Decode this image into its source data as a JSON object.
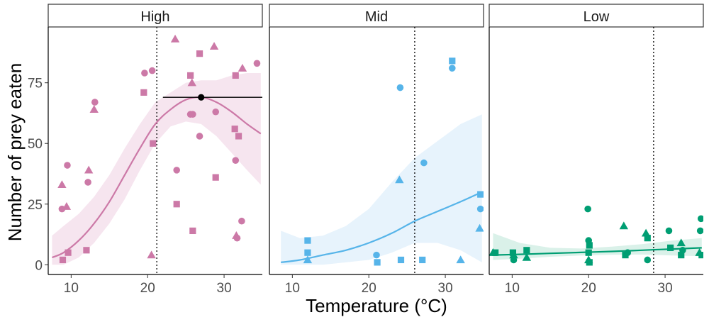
{
  "chart_data": {
    "type": "scatter",
    "y_label": "Number of prey eaten",
    "x_label": "Temperature (°C)",
    "xlim": [
      7,
      35
    ],
    "ylim": [
      -4,
      98
    ],
    "x_ticks": [
      10,
      20,
      30
    ],
    "y_ticks": [
      0,
      25,
      50,
      75
    ],
    "shape_legend": [
      "triangle",
      "circle",
      "square"
    ],
    "panels": [
      {
        "title": "High",
        "color": "#CC79A7",
        "fill": "#F4E1EC",
        "vline_x": 21.2,
        "optimum": {
          "x": 27,
          "y": 69,
          "xmin": 22,
          "xmax": 35
        },
        "fit_x": [
          7.5,
          9,
          11,
          13,
          15,
          17,
          19,
          21,
          23,
          25,
          27,
          29,
          31,
          33,
          34.8
        ],
        "fit_y": [
          3,
          5,
          10,
          17,
          26,
          37,
          48,
          58,
          64,
          68,
          69,
          67,
          63,
          58,
          54
        ],
        "ci_low": [
          0,
          0,
          3,
          9,
          17,
          27,
          39,
          50,
          57,
          59,
          58,
          53,
          46,
          39,
          33
        ],
        "ci_high": [
          12,
          16,
          21,
          28,
          37,
          48,
          58,
          67,
          71,
          75,
          76,
          76,
          78,
          79,
          79
        ],
        "points": [
          {
            "x": 8.8,
            "y": 33,
            "s": "tri"
          },
          {
            "x": 9.4,
            "y": 24,
            "s": "tri"
          },
          {
            "x": 8.8,
            "y": 23,
            "s": "circle"
          },
          {
            "x": 9.5,
            "y": 41,
            "s": "circle"
          },
          {
            "x": 8.9,
            "y": 2,
            "s": "square"
          },
          {
            "x": 9.6,
            "y": 5,
            "s": "square"
          },
          {
            "x": 12.3,
            "y": 39,
            "s": "tri"
          },
          {
            "x": 12.2,
            "y": 34,
            "s": "circle"
          },
          {
            "x": 12.0,
            "y": 6,
            "s": "square"
          },
          {
            "x": 13.1,
            "y": 67,
            "s": "circle"
          },
          {
            "x": 13.0,
            "y": 64,
            "s": "tri"
          },
          {
            "x": 19.6,
            "y": 79,
            "s": "circle"
          },
          {
            "x": 20.6,
            "y": 80,
            "s": "circle"
          },
          {
            "x": 19.5,
            "y": 71,
            "s": "square"
          },
          {
            "x": 20.7,
            "y": 50,
            "s": "square"
          },
          {
            "x": 20.5,
            "y": 4,
            "s": "tri"
          },
          {
            "x": 23.6,
            "y": 93,
            "s": "tri"
          },
          {
            "x": 23.8,
            "y": 39,
            "s": "circle"
          },
          {
            "x": 23.8,
            "y": 25,
            "s": "square"
          },
          {
            "x": 25.6,
            "y": 78,
            "s": "square"
          },
          {
            "x": 25.8,
            "y": 75,
            "s": "tri"
          },
          {
            "x": 25.6,
            "y": 62,
            "s": "circle"
          },
          {
            "x": 25.9,
            "y": 62,
            "s": "circle"
          },
          {
            "x": 25.9,
            "y": 14,
            "s": "square"
          },
          {
            "x": 26.8,
            "y": 53,
            "s": "circle"
          },
          {
            "x": 26.8,
            "y": 87,
            "s": "square"
          },
          {
            "x": 28.7,
            "y": 90,
            "s": "tri"
          },
          {
            "x": 28.9,
            "y": 63,
            "s": "circle"
          },
          {
            "x": 28.9,
            "y": 36,
            "s": "square"
          },
          {
            "x": 31.5,
            "y": 78,
            "s": "square"
          },
          {
            "x": 32.4,
            "y": 81,
            "s": "tri"
          },
          {
            "x": 31.4,
            "y": 56,
            "s": "square"
          },
          {
            "x": 31.9,
            "y": 53,
            "s": "square"
          },
          {
            "x": 31.5,
            "y": 43,
            "s": "circle"
          },
          {
            "x": 31.6,
            "y": 12,
            "s": "tri"
          },
          {
            "x": 31.7,
            "y": 11,
            "s": "circle"
          },
          {
            "x": 32.3,
            "y": 18,
            "s": "circle"
          },
          {
            "x": 34.3,
            "y": 83,
            "s": "circle"
          }
        ]
      },
      {
        "title": "Mid",
        "color": "#56B4E9",
        "fill": "#E3F1FB",
        "vline_x": 26,
        "optimum": null,
        "fit_x": [
          8.5,
          11,
          14,
          17,
          20,
          23,
          26,
          29,
          32,
          34.8
        ],
        "fit_y": [
          1,
          2,
          4,
          6,
          9,
          13,
          18,
          22,
          26,
          30
        ],
        "ci_low": [
          0,
          0,
          0,
          1,
          2,
          5,
          9,
          9,
          6,
          1
        ],
        "ci_high": [
          14,
          11,
          12,
          16,
          23,
          34,
          44,
          51,
          58,
          62
        ],
        "points": [
          {
            "x": 12.0,
            "y": 10,
            "s": "square"
          },
          {
            "x": 12.0,
            "y": 5,
            "s": "square"
          },
          {
            "x": 12.0,
            "y": 2,
            "s": "tri"
          },
          {
            "x": 21.0,
            "y": 4,
            "s": "circle"
          },
          {
            "x": 21.1,
            "y": 1,
            "s": "square"
          },
          {
            "x": 24.1,
            "y": 73,
            "s": "circle"
          },
          {
            "x": 24.0,
            "y": 35,
            "s": "tri"
          },
          {
            "x": 24.2,
            "y": 2,
            "s": "square"
          },
          {
            "x": 27.2,
            "y": 42,
            "s": "circle"
          },
          {
            "x": 27.0,
            "y": 2,
            "s": "square"
          },
          {
            "x": 30.9,
            "y": 84,
            "s": "square"
          },
          {
            "x": 30.9,
            "y": 81,
            "s": "circle"
          },
          {
            "x": 32.0,
            "y": 2,
            "s": "tri"
          },
          {
            "x": 34.6,
            "y": 29,
            "s": "square"
          },
          {
            "x": 34.6,
            "y": 23,
            "s": "circle"
          },
          {
            "x": 34.5,
            "y": 15,
            "s": "tri"
          }
        ]
      },
      {
        "title": "Low",
        "color": "#009E73",
        "fill": "#D3EEE5",
        "vline_x": 28.5,
        "optimum": null,
        "fit_x": [
          7.5,
          11,
          15,
          19,
          23,
          27,
          31,
          34.8
        ],
        "fit_y": [
          4,
          4.3,
          4.7,
          5.1,
          5.5,
          6,
          6.5,
          7
        ],
        "ci_low": [
          2,
          2.5,
          3.3,
          3.8,
          4.1,
          4.2,
          3.8,
          3.5
        ],
        "ci_high": [
          13,
          9,
          7,
          6.7,
          7.5,
          8.5,
          10,
          11
        ],
        "points": [
          {
            "x": 7.5,
            "y": 5,
            "s": "tri"
          },
          {
            "x": 7.8,
            "y": 5,
            "s": "square"
          },
          {
            "x": 10.1,
            "y": 5,
            "s": "square"
          },
          {
            "x": 10.2,
            "y": 4,
            "s": "tri"
          },
          {
            "x": 10.2,
            "y": 2,
            "s": "circle"
          },
          {
            "x": 11.9,
            "y": 6,
            "s": "square"
          },
          {
            "x": 11.9,
            "y": 3,
            "s": "tri"
          },
          {
            "x": 19.9,
            "y": 23,
            "s": "circle"
          },
          {
            "x": 20.0,
            "y": 10,
            "s": "circle"
          },
          {
            "x": 20.1,
            "y": 8,
            "s": "square"
          },
          {
            "x": 20.0,
            "y": 5,
            "s": "square"
          },
          {
            "x": 20.0,
            "y": 2,
            "s": "tri"
          },
          {
            "x": 20.1,
            "y": 1,
            "s": "square"
          },
          {
            "x": 24.6,
            "y": 16,
            "s": "tri"
          },
          {
            "x": 25.1,
            "y": 5,
            "s": "circle"
          },
          {
            "x": 24.8,
            "y": 4,
            "s": "square"
          },
          {
            "x": 27.5,
            "y": 13,
            "s": "tri"
          },
          {
            "x": 27.7,
            "y": 11,
            "s": "square"
          },
          {
            "x": 27.7,
            "y": 2,
            "s": "circle"
          },
          {
            "x": 30.5,
            "y": 14,
            "s": "circle"
          },
          {
            "x": 30.7,
            "y": 7,
            "s": "square"
          },
          {
            "x": 32.1,
            "y": 9,
            "s": "tri"
          },
          {
            "x": 32.3,
            "y": 6,
            "s": "circle"
          },
          {
            "x": 32.1,
            "y": 4,
            "s": "square"
          },
          {
            "x": 34.7,
            "y": 19,
            "s": "circle"
          },
          {
            "x": 34.6,
            "y": 14,
            "s": "circle"
          },
          {
            "x": 34.5,
            "y": 5,
            "s": "tri"
          },
          {
            "x": 34.8,
            "y": 4,
            "s": "square"
          }
        ]
      }
    ]
  }
}
